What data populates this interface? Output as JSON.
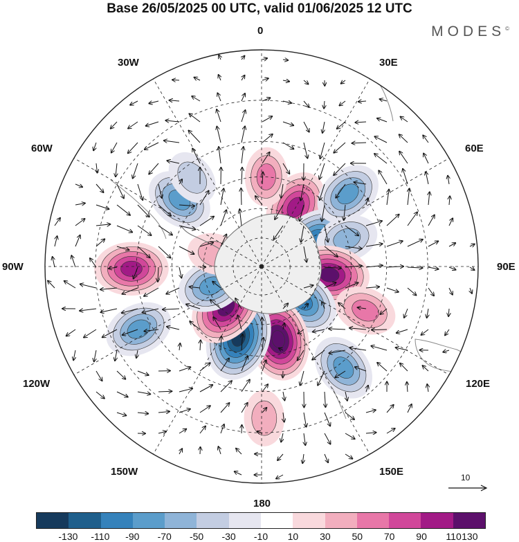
{
  "title": "Base 26/05/2025 00 UTC, valid 01/06/2025 12 UTC",
  "brand": "MODES",
  "brand_mark": "©",
  "longitude_labels": {
    "lon_0": "0",
    "lon_30e": "30E",
    "lon_60e": "60E",
    "lon_90e": "90E",
    "lon_120e": "120E",
    "lon_150e": "150E",
    "lon_180": "180",
    "lon_150w": "150W",
    "lon_120w": "120W",
    "lon_90w": "90W",
    "lon_60w": "60W",
    "lon_30w": "30W"
  },
  "vector_scale": {
    "value": "10"
  },
  "colorbar": {
    "colors": [
      "#163a5c",
      "#1f5f8c",
      "#3582bb",
      "#5b9dcb",
      "#8fb4d8",
      "#c3cde2",
      "#e6e6f0",
      "#ffffff",
      "#f9d9dd",
      "#f2aebe",
      "#e877a8",
      "#d1479a",
      "#a21a86",
      "#5c106b"
    ],
    "ticks": [
      "-130",
      "-110",
      "-90",
      "-70",
      "-50",
      "-30",
      "-10",
      "10",
      "30",
      "50",
      "70",
      "90",
      "110",
      "130"
    ]
  },
  "anomaly_centers": [
    {
      "lon": 30,
      "lat": -55,
      "value": 90
    },
    {
      "lon": 62,
      "lat": -58,
      "value": -80
    },
    {
      "lon": 50,
      "lat": -35,
      "value": -70
    },
    {
      "lon": 72,
      "lat": -45,
      "value": -50
    },
    {
      "lon": 97,
      "lat": -55,
      "value": 110
    },
    {
      "lon": 113,
      "lat": -35,
      "value": 50
    },
    {
      "lon": 130,
      "lat": -62,
      "value": -90
    },
    {
      "lon": 141,
      "lat": -28,
      "value": -70
    },
    {
      "lon": 167,
      "lat": -52,
      "value": 120
    },
    {
      "lon": -162,
      "lat": -52,
      "value": -130
    },
    {
      "lon": -139,
      "lat": -62,
      "value": 110
    },
    {
      "lon": -111,
      "lat": -62,
      "value": -70
    },
    {
      "lon": -117,
      "lat": -25,
      "value": -70
    },
    {
      "lon": -91,
      "lat": -28,
      "value": 90
    },
    {
      "lon": -51,
      "lat": -38,
      "value": -70
    },
    {
      "lon": -38,
      "lat": -35,
      "value": -30
    },
    {
      "lon": 3,
      "lat": -45,
      "value": 40
    },
    {
      "lon": 179,
      "lat": -20,
      "value": 30
    },
    {
      "lon": -75,
      "lat": -65,
      "value": 30
    }
  ]
}
